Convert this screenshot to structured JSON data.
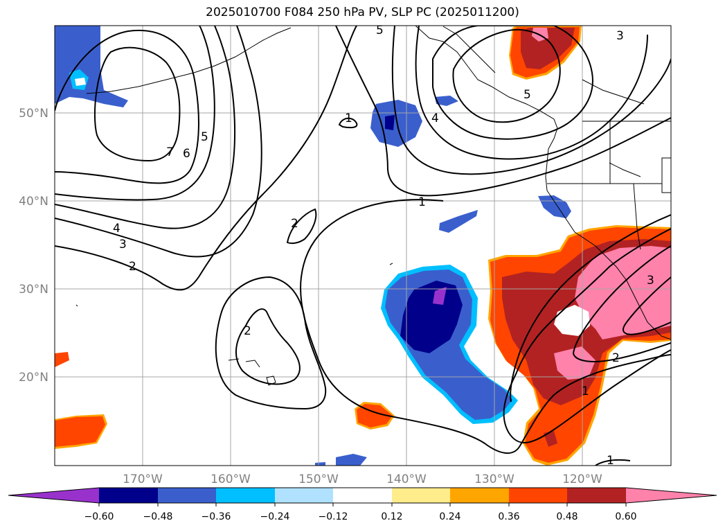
{
  "title": "2025010700 F084 250 hPa PV, SLP PC (2025011200)",
  "map": {
    "projection": "lat-lon",
    "lon_range": [
      -180,
      -110
    ],
    "lat_range": [
      10,
      60
    ],
    "lat_ticks": [
      {
        "value": 50,
        "label": "50°N"
      },
      {
        "value": 40,
        "label": "40°N"
      },
      {
        "value": 30,
        "label": "30°N"
      },
      {
        "value": 20,
        "label": "20°N"
      }
    ],
    "lon_ticks": [
      {
        "value": -170,
        "label": "170°W"
      },
      {
        "value": -160,
        "label": "160°W"
      },
      {
        "value": -150,
        "label": "150°W"
      },
      {
        "value": -140,
        "label": "140°W"
      },
      {
        "value": -130,
        "label": "130°W"
      },
      {
        "value": -120,
        "label": "120°W"
      }
    ],
    "grid": true,
    "contour_labels": [
      "1",
      "1",
      "1",
      "1",
      "2",
      "2",
      "2",
      "2",
      "3",
      "3",
      "3",
      "4",
      "4",
      "5",
      "5",
      "5",
      "6",
      "7"
    ]
  },
  "colorbar": {
    "orientation": "horizontal",
    "extend": "both",
    "tick_labels": [
      "−0.60",
      "−0.48",
      "−0.36",
      "−0.24",
      "−0.12",
      "0.12",
      "0.24",
      "0.36",
      "0.48",
      "0.60"
    ],
    "colors": {
      "under": "#9932cc",
      "c1": "#00008b",
      "c2": "#3a5fcd",
      "c3": "#00bfff",
      "c4": "#b0e2ff",
      "c5": "#ffffff",
      "c6": "#ffec8b",
      "c7": "#ffa500",
      "c8": "#ff4500",
      "c9": "#b22222",
      "over": "#ff82ab"
    }
  }
}
